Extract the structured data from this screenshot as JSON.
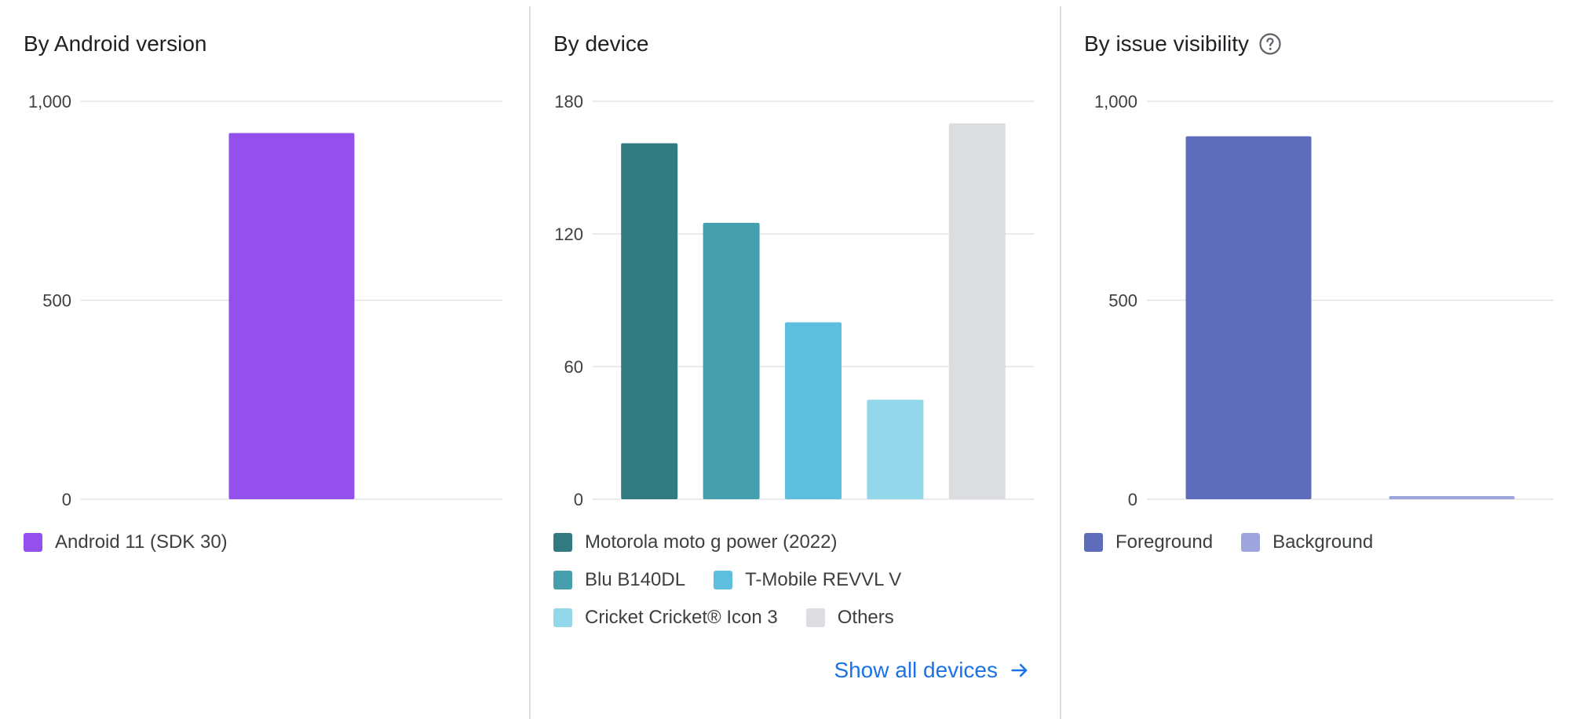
{
  "panels": {
    "android": {
      "title": "By Android version"
    },
    "device": {
      "title": "By device",
      "show_all_label": "Show all devices"
    },
    "visibility": {
      "title": "By issue visibility",
      "help_icon": "help-circle-icon"
    }
  },
  "links": {
    "arrow_icon": "arrow-right-icon",
    "color": "#1a73e8"
  },
  "chart_data": [
    {
      "id": "android",
      "type": "bar",
      "title": "By Android version",
      "categories": [
        "Android 11 (SDK 30)"
      ],
      "values": [
        920
      ],
      "colors": [
        "#9450ec"
      ],
      "ylim": [
        0,
        1000
      ],
      "yticks": [
        0,
        500,
        1000
      ],
      "ytick_labels": [
        "0",
        "500",
        "1,000"
      ],
      "grid": true,
      "legend": "bottom-left"
    },
    {
      "id": "device",
      "type": "bar",
      "title": "By device",
      "categories": [
        "Motorola moto g power (2022)",
        "Blu B140DL",
        "T-Mobile REVVL V",
        "Cricket Cricket® Icon 3",
        "Others"
      ],
      "values": [
        161,
        125,
        80,
        45,
        170
      ],
      "colors": [
        "#317a80",
        "#469fad",
        "#5ebedd",
        "#93d8ea",
        "#dcdde1"
      ],
      "ylim": [
        0,
        180
      ],
      "yticks": [
        0,
        60,
        120,
        180
      ],
      "ytick_labels": [
        "0",
        "60",
        "120",
        "180"
      ],
      "grid": true,
      "legend": "bottom-left"
    },
    {
      "id": "visibility",
      "type": "bar",
      "title": "By issue visibility",
      "categories": [
        "Foreground",
        "Background"
      ],
      "values": [
        912,
        8
      ],
      "colors": [
        "#5d6cbb",
        "#9da5dc"
      ],
      "ylim": [
        0,
        1000
      ],
      "yticks": [
        0,
        500,
        1000
      ],
      "ytick_labels": [
        "0",
        "500",
        "1,000"
      ],
      "grid": true,
      "legend": "bottom-left"
    }
  ]
}
